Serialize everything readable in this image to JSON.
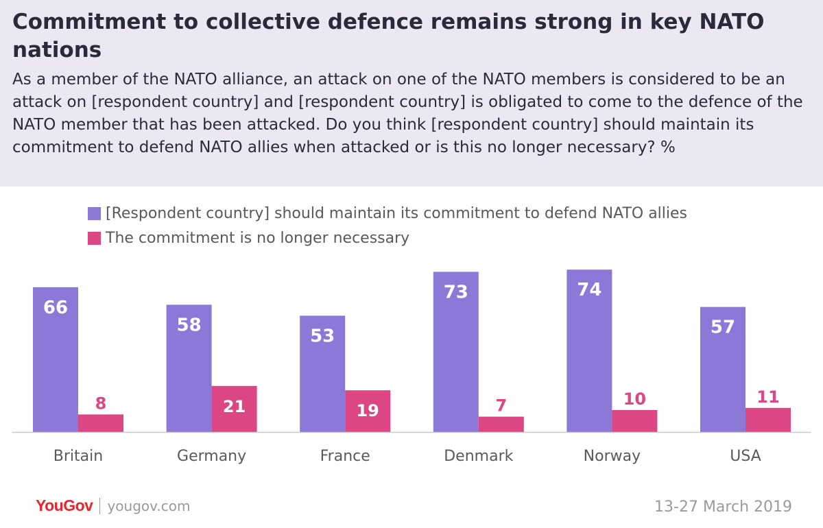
{
  "title": "Commitment to collective defence remains strong in key NATO nations",
  "subtitle": "As a member of the NATO alliance, an attack on one of the NATO members is considered to be an attack on [respondent country] and [respondent country] is obligated to come to the defence of the NATO member that has been attacked. Do you think [respondent country] should maintain its commitment to defend NATO allies when attacked or is this no longer necessary? %",
  "legend": [
    {
      "label": "[Respondent country] should maintain its commitment to defend NATO allies",
      "color": "#8c78d6"
    },
    {
      "label": "The commitment is no longer necessary",
      "color": "#dc4684"
    }
  ],
  "chart_data": {
    "type": "bar",
    "categories": [
      "Britain",
      "Germany",
      "France",
      "Denmark",
      "Norway",
      "USA"
    ],
    "series": [
      {
        "name": "[Respondent country] should maintain its commitment to defend NATO allies",
        "values": [
          66,
          58,
          53,
          73,
          74,
          57
        ],
        "color": "#8c78d6"
      },
      {
        "name": "The commitment is no longer necessary",
        "values": [
          8,
          21,
          19,
          7,
          10,
          11
        ],
        "color": "#dc4684"
      }
    ],
    "ylim": [
      0,
      80
    ],
    "grid": false,
    "legend_position": "top-left"
  },
  "footer": {
    "logo": "YouGov",
    "site": "yougov.com",
    "date": "13-27 March 2019"
  }
}
